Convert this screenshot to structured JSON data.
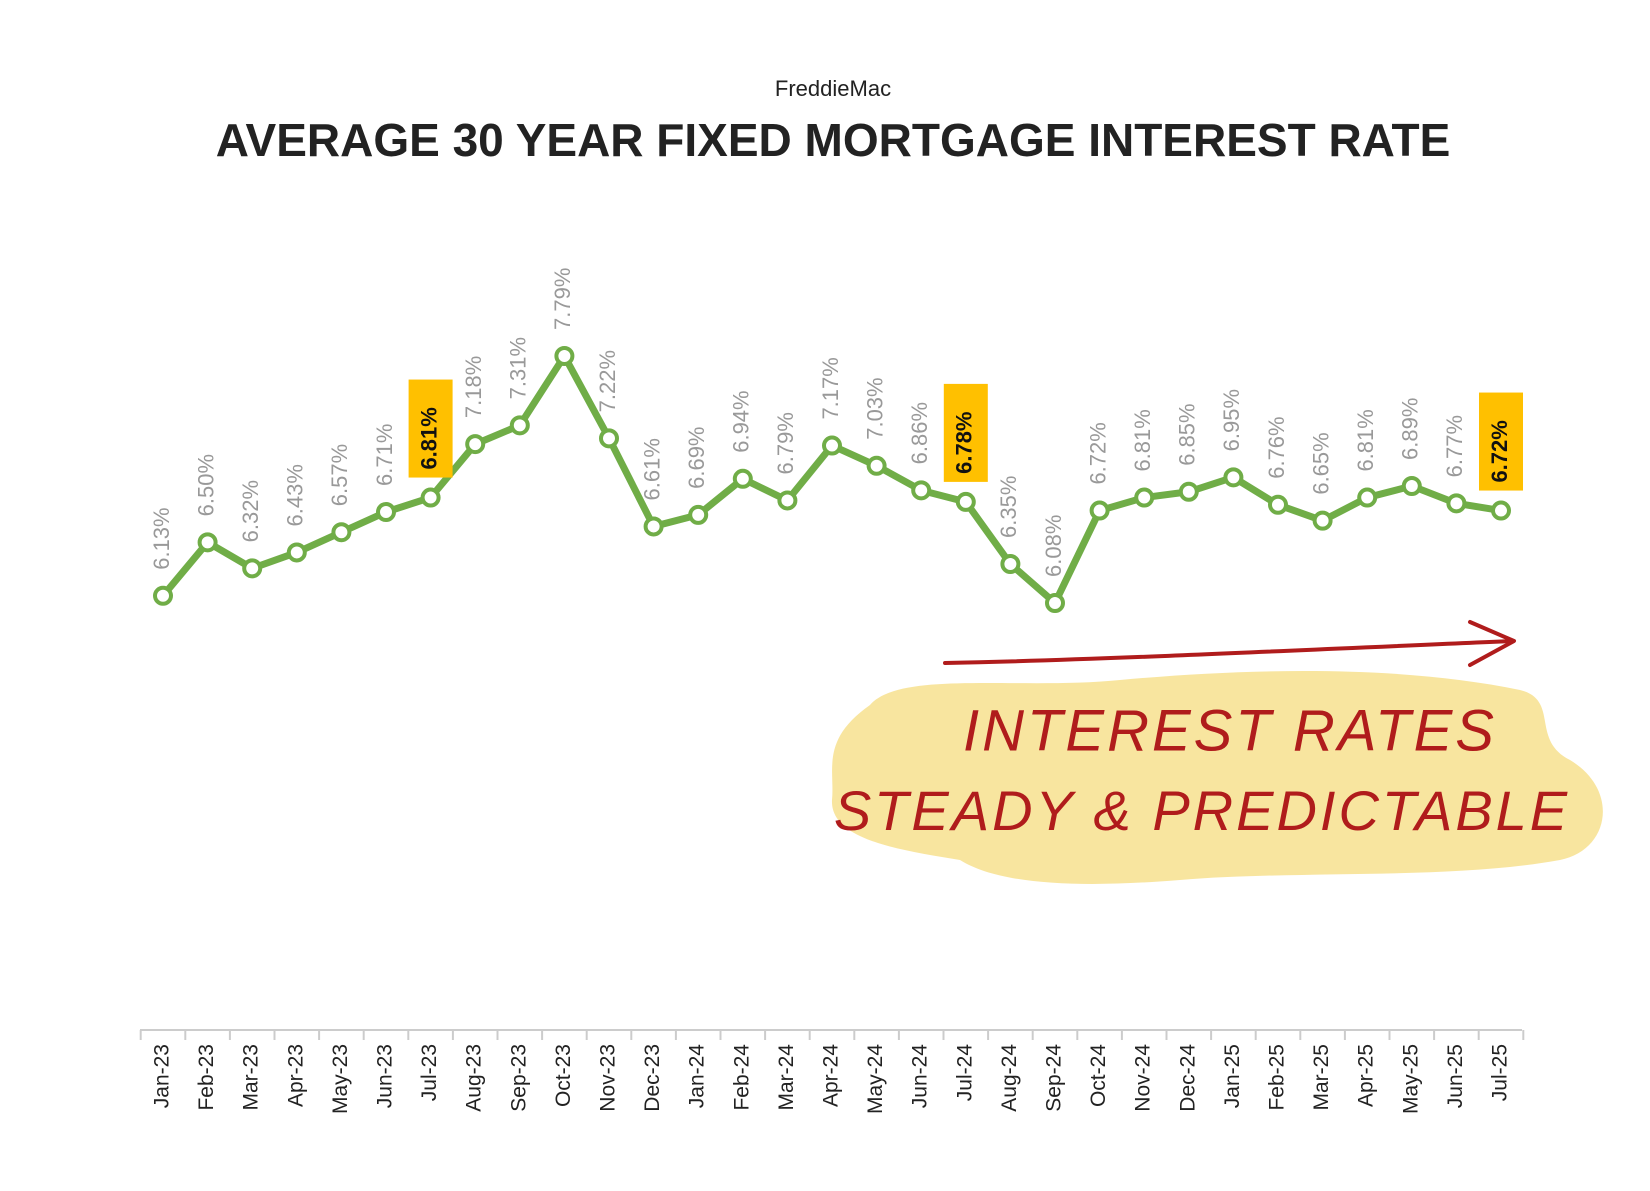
{
  "chart_data": {
    "type": "line",
    "subtitle": "FreddieMac",
    "title": "AVERAGE 30 YEAR FIXED MORTGAGE INTEREST RATE",
    "categories": [
      "Jan-23",
      "Feb-23",
      "Mar-23",
      "Apr-23",
      "May-23",
      "Jun-23",
      "Jul-23",
      "Aug-23",
      "Sep-23",
      "Oct-23",
      "Nov-23",
      "Dec-23",
      "Jan-24",
      "Feb-24",
      "Mar-24",
      "Apr-24",
      "May-24",
      "Jun-24",
      "Jul-24",
      "Aug-24",
      "Sep-24",
      "Oct-24",
      "Nov-24",
      "Dec-24",
      "Jan-25",
      "Feb-25",
      "Mar-25",
      "Apr-25",
      "May-25",
      "Jun-25",
      "Jul-25"
    ],
    "series": [
      {
        "name": "Average 30 year fixed mortgage interest rate",
        "color": "#70ad47",
        "values": [
          6.13,
          6.5,
          6.32,
          6.43,
          6.57,
          6.71,
          6.81,
          7.18,
          7.31,
          7.79,
          7.22,
          6.61,
          6.69,
          6.94,
          6.79,
          7.17,
          7.03,
          6.86,
          6.78,
          6.35,
          6.08,
          6.72,
          6.81,
          6.85,
          6.95,
          6.76,
          6.65,
          6.81,
          6.89,
          6.77,
          6.72
        ],
        "value_labels": [
          "6.13%",
          "6.50%",
          "6.32%",
          "6.43%",
          "6.57%",
          "6.71%",
          "6.81%",
          "7.18%",
          "7.31%",
          "7.79%",
          "7.22%",
          "6.61%",
          "6.69%",
          "6.94%",
          "6.79%",
          "7.17%",
          "7.03%",
          "6.86%",
          "6.78%",
          "6.35%",
          "6.08%",
          "6.72%",
          "6.81%",
          "6.85%",
          "6.95%",
          "6.76%",
          "6.65%",
          "6.81%",
          "6.89%",
          "6.77%",
          "6.72%"
        ],
        "highlighted": [
          6,
          18,
          30
        ],
        "highlight_color": "#ffc000"
      }
    ],
    "annotation_lines": [
      "INTEREST RATES",
      "STEADY & PREDICTABLE"
    ],
    "annotation_color": "#b01c1c"
  }
}
